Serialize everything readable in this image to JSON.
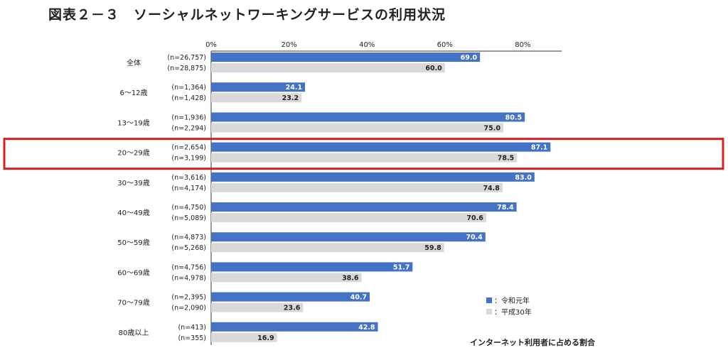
{
  "title": "図表２－３　ソーシャルネットワーキングサービスの利用状況",
  "note": "インターネット利用者に占める割合",
  "colors": {
    "series1": "#4472c4",
    "series2": "#d9d9d9",
    "highlight": "#d9201e",
    "axis": "#333333"
  },
  "chart_data": {
    "type": "bar",
    "orientation": "horizontal",
    "xlim": [
      0,
      90
    ],
    "x_ticks": [
      "0%",
      "20%",
      "40%",
      "60%",
      "80%"
    ],
    "categories": [
      "全体",
      "6～12歳",
      "13～19歳",
      "20～29歳",
      "30～39歳",
      "40～49歳",
      "50～59歳",
      "60～69歳",
      "70～79歳",
      "80歳以上"
    ],
    "series": [
      {
        "name": "：令和元年",
        "color": "#4472c4",
        "values": [
          69.0,
          24.1,
          80.5,
          87.1,
          83.0,
          78.4,
          70.4,
          51.7,
          40.7,
          42.8
        ],
        "n": [
          "(n=26,757)",
          "(n=1,364)",
          "(n=1,936)",
          "(n=2,654)",
          "(n=3,616)",
          "(n=4,750)",
          "(n=4,873)",
          "(n=4,756)",
          "(n=2,395)",
          "(n=413)"
        ]
      },
      {
        "name": "：平成30年",
        "color": "#d9d9d9",
        "values": [
          60.0,
          23.2,
          75.0,
          78.5,
          74.8,
          70.6,
          59.8,
          38.6,
          23.6,
          16.9
        ],
        "n": [
          "(n=28,875)",
          "(n=1,428)",
          "(n=2,294)",
          "(n=3,199)",
          "(n=4,174)",
          "(n=5,089)",
          "(n=5,268)",
          "(n=4,978)",
          "(n=2,090)",
          "(n=355)"
        ]
      }
    ],
    "highlighted_category": "20～29歳",
    "legend_position": "bottom-right",
    "grid": false
  }
}
